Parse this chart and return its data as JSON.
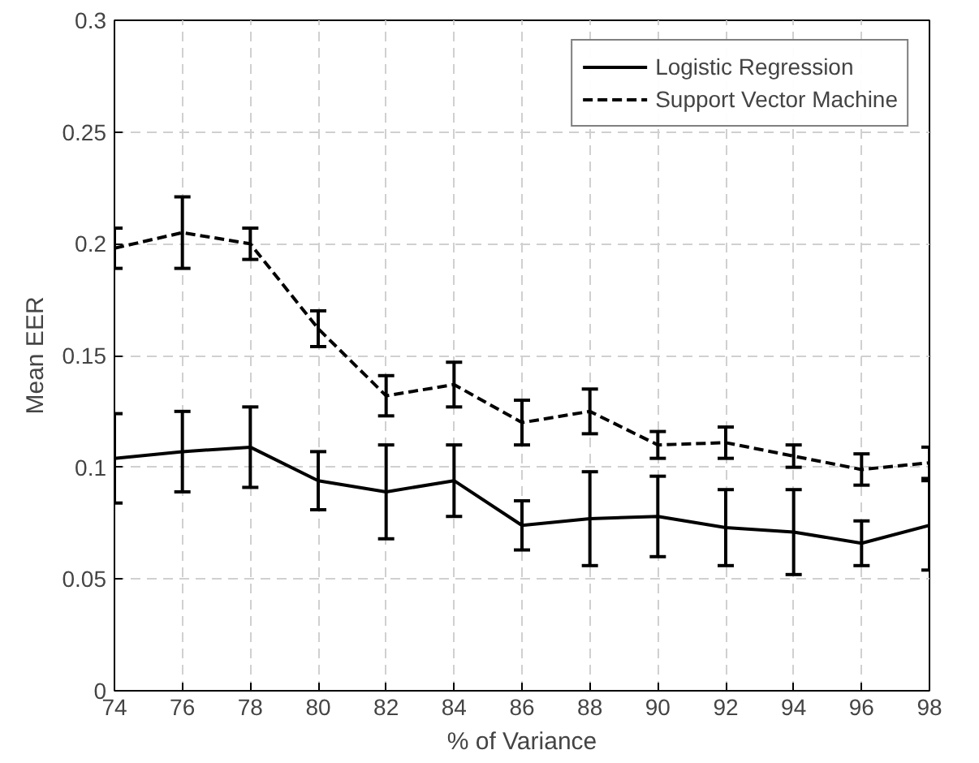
{
  "chart_data": {
    "type": "line",
    "xlabel": "% of Variance",
    "ylabel": "Mean EER",
    "x": [
      74,
      76,
      78,
      80,
      82,
      84,
      86,
      88,
      90,
      92,
      94,
      96,
      98
    ],
    "series": [
      {
        "name": "Logistic Regression",
        "color": "#000000",
        "line_style": "solid",
        "values": [
          0.104,
          0.107,
          0.109,
          0.094,
          0.089,
          0.094,
          0.074,
          0.077,
          0.078,
          0.073,
          0.071,
          0.066,
          0.074
        ],
        "errors": [
          0.02,
          0.018,
          0.018,
          0.013,
          0.021,
          0.016,
          0.011,
          0.021,
          0.018,
          0.017,
          0.019,
          0.01,
          0.02
        ]
      },
      {
        "name": "Support Vector Machine",
        "color": "#000000",
        "line_style": "dashed",
        "values": [
          0.198,
          0.205,
          0.2,
          0.162,
          0.132,
          0.137,
          0.12,
          0.125,
          0.11,
          0.111,
          0.105,
          0.099,
          0.102
        ],
        "errors": [
          0.009,
          0.016,
          0.007,
          0.008,
          0.009,
          0.01,
          0.01,
          0.01,
          0.006,
          0.007,
          0.005,
          0.007,
          0.007
        ]
      }
    ],
    "xlim": [
      74,
      98
    ],
    "ylim": [
      0,
      0.3
    ],
    "xticks": [
      74,
      76,
      78,
      80,
      82,
      84,
      86,
      88,
      90,
      92,
      94,
      96,
      98
    ],
    "yticks": [
      0,
      0.05,
      0.1,
      0.15,
      0.2,
      0.25,
      0.3
    ],
    "grid": true,
    "legend": "top right",
    "marker": "none"
  }
}
